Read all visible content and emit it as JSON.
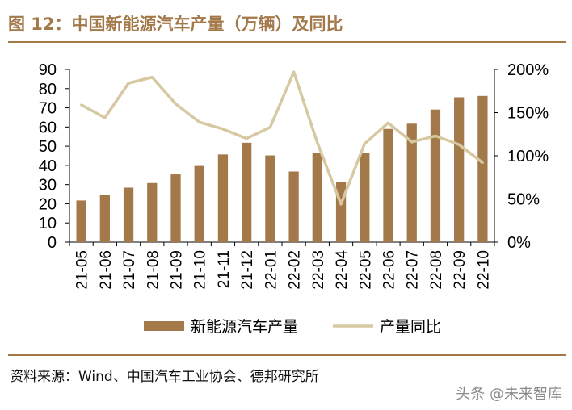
{
  "title": "图 12：中国新能源汽车产量（万辆）及同比",
  "source": "资料来源：Wind、中国汽车工业协会、德邦研究所",
  "watermark": "头条 @未来智库",
  "colors": {
    "bar": "#a3794a",
    "line": "#d6c9a2",
    "accent": "#a3794a",
    "text": "#000000"
  },
  "chart_data": {
    "type": "bar",
    "title": "中国新能源汽车产量（万辆）及同比",
    "categories": [
      "21-05",
      "21-06",
      "21-07",
      "21-08",
      "21-09",
      "21-10",
      "21-11",
      "21-12",
      "22-01",
      "22-02",
      "22-03",
      "22-04",
      "22-05",
      "22-06",
      "22-07",
      "22-08",
      "22-09",
      "22-10"
    ],
    "series": [
      {
        "name": "新能源汽车产量",
        "type": "bar",
        "axis": "left",
        "values": [
          21.7,
          24.8,
          28.4,
          30.8,
          35.3,
          39.7,
          45.7,
          51.8,
          45.2,
          36.8,
          46.5,
          31.2,
          46.6,
          59.0,
          61.7,
          69.1,
          75.5,
          76.2
        ]
      },
      {
        "name": "产量同比",
        "type": "line",
        "axis": "right",
        "values": [
          1.59,
          1.44,
          1.84,
          1.91,
          1.6,
          1.39,
          1.31,
          1.2,
          1.33,
          1.97,
          1.15,
          0.44,
          1.14,
          1.38,
          1.16,
          1.23,
          1.13,
          0.92
        ]
      }
    ],
    "y_left": {
      "min": 0,
      "max": 90,
      "ticks": [
        0,
        10,
        20,
        30,
        40,
        50,
        60,
        70,
        80,
        90
      ]
    },
    "y_right": {
      "min": 0,
      "max": 2,
      "ticks": [
        0,
        0.5,
        1.0,
        1.5,
        2.0
      ],
      "tick_labels": [
        "0%",
        "50%",
        "100%",
        "150%",
        "200%"
      ]
    },
    "legend": {
      "position": "bottom",
      "items": [
        "新能源汽车产量",
        "产量同比"
      ]
    }
  }
}
